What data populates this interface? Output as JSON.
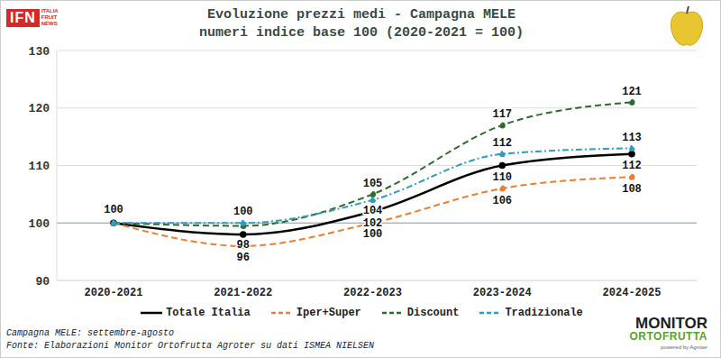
{
  "chart_data": {
    "type": "line",
    "title": "Evoluzione prezzi medi - Campagna MELE",
    "subtitle": "numeri indice base 100 (2020-2021 = 100)",
    "categories": [
      "2020-2021",
      "2021-2022",
      "2022-2023",
      "2023-2024",
      "2024-2025"
    ],
    "series": [
      {
        "name": "Totale Italia",
        "color": "#000000",
        "line_style": "solid",
        "marker": "circle",
        "values": [
          100,
          98,
          102,
          110,
          112
        ],
        "value_labels": [
          "100",
          "98",
          "102",
          "110",
          "112"
        ]
      },
      {
        "name": "Iper+Super",
        "color": "#ED7D31",
        "line_style": "dashed",
        "marker": "circle",
        "values": [
          100,
          96,
          100,
          106,
          108
        ],
        "value_labels": [
          null,
          "96",
          "100",
          "106",
          "108"
        ]
      },
      {
        "name": "Discount",
        "color": "#2E6B2E",
        "line_style": "dashed",
        "marker": "circle",
        "values": [
          100,
          99.5,
          105,
          117,
          121
        ],
        "value_labels": [
          null,
          null,
          "105",
          "117",
          "121"
        ]
      },
      {
        "name": "Tradizionale",
        "color": "#2E9BC6",
        "line_style": "dashdot",
        "marker": "circle",
        "values": [
          100,
          100,
          104,
          112,
          113
        ],
        "value_labels": [
          null,
          "100",
          "104",
          "112",
          "113"
        ]
      }
    ],
    "ylim": [
      90,
      130
    ],
    "yticks": [
      90,
      100,
      110,
      120,
      130
    ],
    "grid": true,
    "data_labels": true,
    "legend": "bottom",
    "annotations": [
      "Campagna MELE: settembre-agosto",
      "Fonte: Elaborazioni Monitor Ortofrutta Agroter su dati ISMEA NIELSEN"
    ],
    "logos": {
      "left": [
        "IFN",
        "ITALIA",
        "FRUIT",
        "NEWS"
      ],
      "right": [
        "MONITOR",
        "ORTOFRUTTA",
        "powered by Agroter"
      ]
    }
  }
}
